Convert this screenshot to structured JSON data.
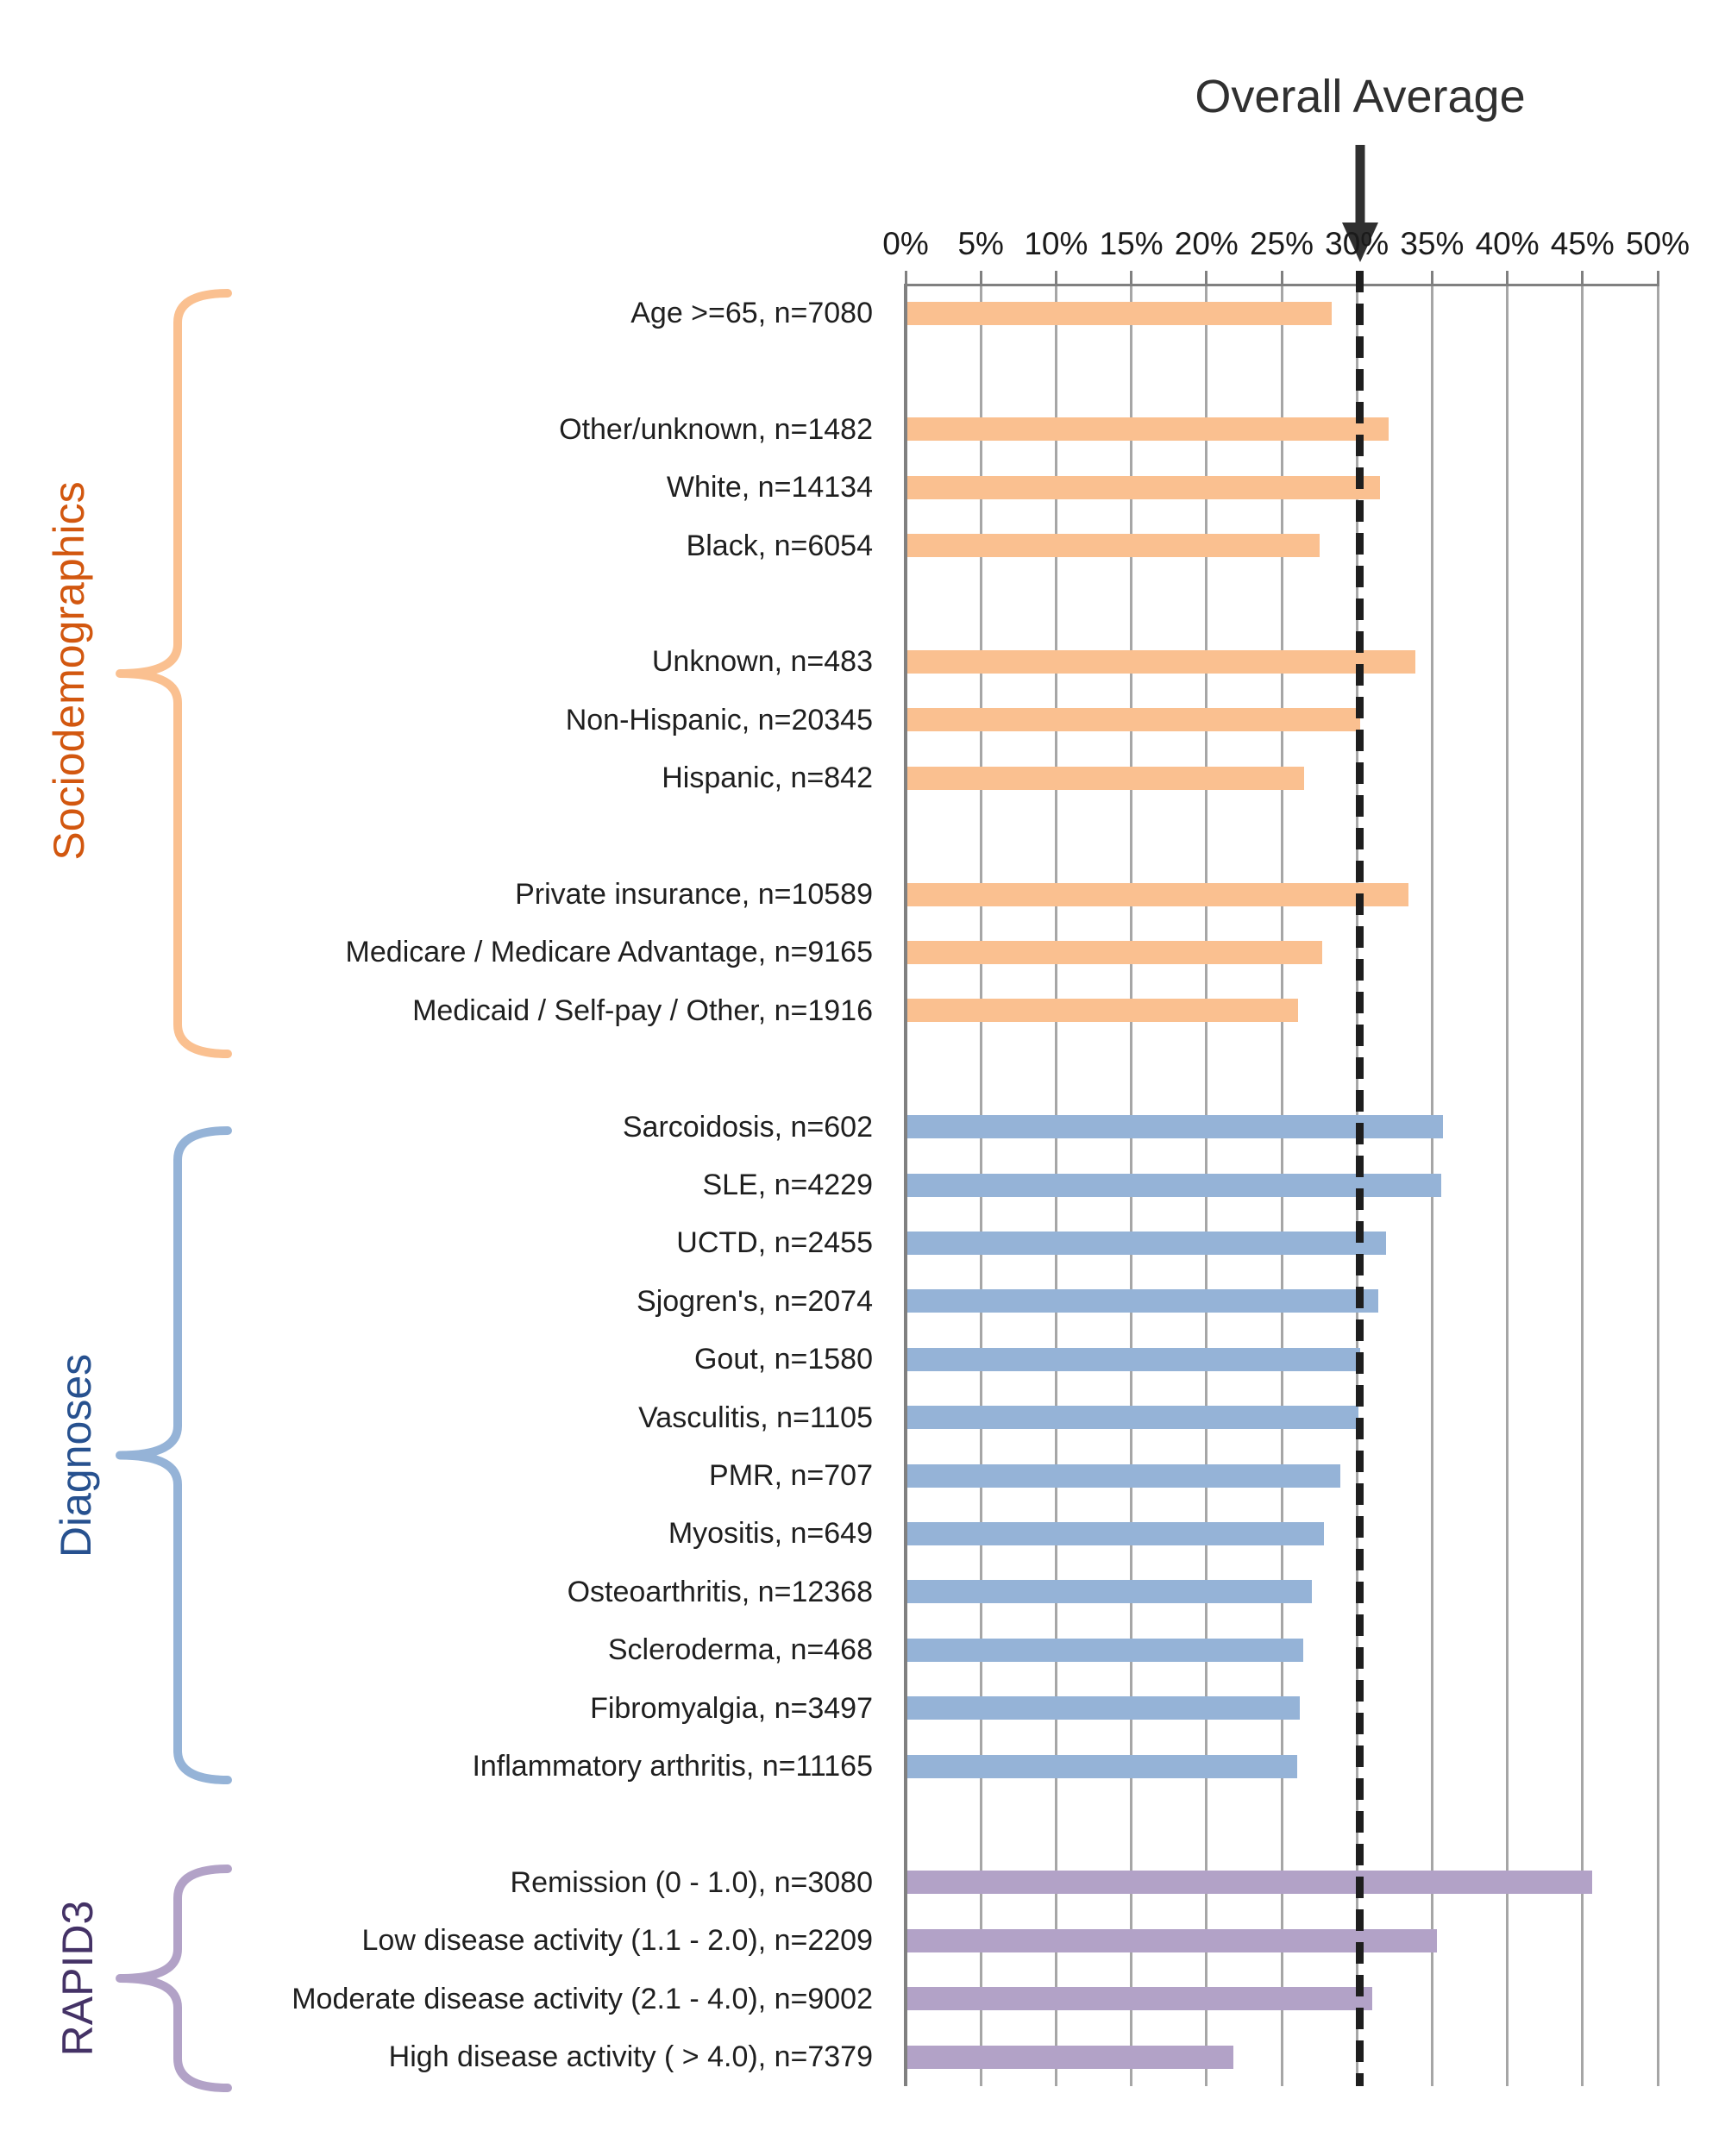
{
  "title": {
    "text": "Overall Average"
  },
  "chart_data": {
    "type": "bar",
    "orientation": "horizontal",
    "x_axis": {
      "min": 0,
      "max": 50,
      "step": 5,
      "position": "top",
      "grid": true,
      "tick_labels": [
        "0%",
        "5%",
        "10%",
        "15%",
        "20%",
        "25%",
        "30%",
        "35%",
        "40%",
        "45%",
        "50%"
      ]
    },
    "overall_average": {
      "label": "Overall Average",
      "value": 30.2,
      "line_style": "dashed"
    },
    "groups": [
      {
        "name": "Sociodemographics",
        "text_color": "#D2570F",
        "bar_color": "#FAC090",
        "brace_color": "#FAC090",
        "rows": [
          {
            "label": "Age >=65, n=7080",
            "value": 28.2,
            "slot": 0
          },
          {
            "label": "Other/unknown, n=1482",
            "value": 32.0,
            "slot": 2
          },
          {
            "label": "White, n=14134",
            "value": 31.4,
            "slot": 3
          },
          {
            "label": "Black, n=6054",
            "value": 27.4,
            "slot": 4
          },
          {
            "label": "Unknown, n=483",
            "value": 33.8,
            "slot": 6
          },
          {
            "label": "Non-Hispanic, n=20345",
            "value": 30.1,
            "slot": 7
          },
          {
            "label": "Hispanic, n=842",
            "value": 26.4,
            "slot": 8
          },
          {
            "label": "Private insurance, n=10589",
            "value": 33.3,
            "slot": 10
          },
          {
            "label": "Medicare / Medicare Advantage, n=9165",
            "value": 27.6,
            "slot": 11
          },
          {
            "label": "Medicaid / Self-pay / Other, n=1916",
            "value": 26.0,
            "slot": 12
          }
        ]
      },
      {
        "name": "Diagnoses",
        "text_color": "#27518F",
        "bar_color": "#95B3D7",
        "brace_color": "#95B3D7",
        "rows": [
          {
            "label": "Sarcoidosis, n=602",
            "value": 35.6,
            "slot": 14
          },
          {
            "label": "SLE, n=4229",
            "value": 35.5,
            "slot": 15
          },
          {
            "label": "UCTD, n=2455",
            "value": 31.8,
            "slot": 16
          },
          {
            "label": "Sjogren's, n=2074",
            "value": 31.3,
            "slot": 17
          },
          {
            "label": "Gout, n=1580",
            "value": 30.1,
            "slot": 18
          },
          {
            "label": "Vasculitis, n=1105",
            "value": 30.0,
            "slot": 19
          },
          {
            "label": "PMR, n=707",
            "value": 28.8,
            "slot": 20
          },
          {
            "label": "Myositis, n=649",
            "value": 27.7,
            "slot": 21
          },
          {
            "label": "Osteoarthritis, n=12368",
            "value": 26.9,
            "slot": 22
          },
          {
            "label": "Scleroderma, n=468",
            "value": 26.3,
            "slot": 23
          },
          {
            "label": "Fibromyalgia, n=3497",
            "value": 26.1,
            "slot": 24
          },
          {
            "label": "Inflammatory arthritis, n=11165",
            "value": 25.9,
            "slot": 25
          }
        ]
      },
      {
        "name": "RAPID3",
        "text_color": "#443266",
        "bar_color": "#B2A2C7",
        "brace_color": "#B2A2C7",
        "rows": [
          {
            "label": "Remission (0 - 1.0), n=3080",
            "value": 45.5,
            "slot": 27
          },
          {
            "label": "Low disease activity (1.1 - 2.0), n=2209",
            "value": 35.2,
            "slot": 28
          },
          {
            "label": "Moderate disease activity (2.1 - 4.0), n=9002",
            "value": 30.9,
            "slot": 29
          },
          {
            "label": "High disease activity ( > 4.0), n=7379",
            "value": 21.7,
            "slot": 30
          }
        ]
      }
    ]
  },
  "colors": {
    "grid": "#A6A6A6",
    "axis": "#808080",
    "dashed_line": "#1E1E1E",
    "title_text": "#303030",
    "row_label_text": "#1F1F1F",
    "background": "#FFFFFF"
  }
}
